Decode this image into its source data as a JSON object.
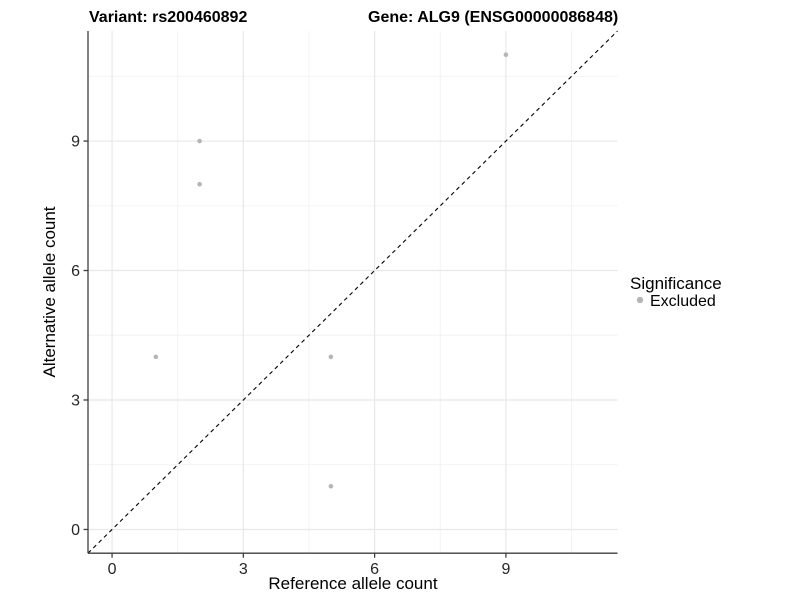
{
  "title": {
    "variant": "Variant: rs200460892",
    "gene": "Gene: ALG9 (ENSG00000086848)"
  },
  "legend": {
    "title": "Significance",
    "items": [
      {
        "label": "Excluded",
        "color": "#b5b5b5"
      }
    ]
  },
  "colors": {
    "point": "#b5b5b5",
    "grid_major": "#e8e8e8",
    "grid_minor": "#f2f2f2",
    "axis_line": "#3f3f3f",
    "reference_line": "#000000",
    "background": "#ffffff"
  },
  "chart_data": {
    "type": "scatter",
    "title": "Variant: rs200460892    Gene: ALG9 (ENSG00000086848)",
    "xlabel": "Reference allele count",
    "ylabel": "Alternative allele count",
    "xlim": [
      -0.55,
      11.55
    ],
    "ylim": [
      -0.55,
      11.55
    ],
    "x_ticks": [
      0,
      3,
      6,
      9
    ],
    "y_ticks": [
      0,
      3,
      6,
      9
    ],
    "x_minor_ticks": [
      1.5,
      4.5,
      7.5,
      10.5
    ],
    "y_minor_ticks": [
      1.5,
      4.5,
      7.5,
      10.5
    ],
    "grid": "major+minor",
    "legend_position": "right",
    "series": [
      {
        "name": "Excluded",
        "color": "#b5b5b5",
        "points": [
          [
            1,
            4
          ],
          [
            2,
            8
          ],
          [
            2,
            9
          ],
          [
            5,
            1
          ],
          [
            5,
            4
          ],
          [
            9,
            11
          ]
        ]
      }
    ],
    "reference_line": {
      "type": "identity",
      "style": "dashed",
      "from": [
        -0.55,
        -0.55
      ],
      "to": [
        11.55,
        11.55
      ]
    }
  }
}
